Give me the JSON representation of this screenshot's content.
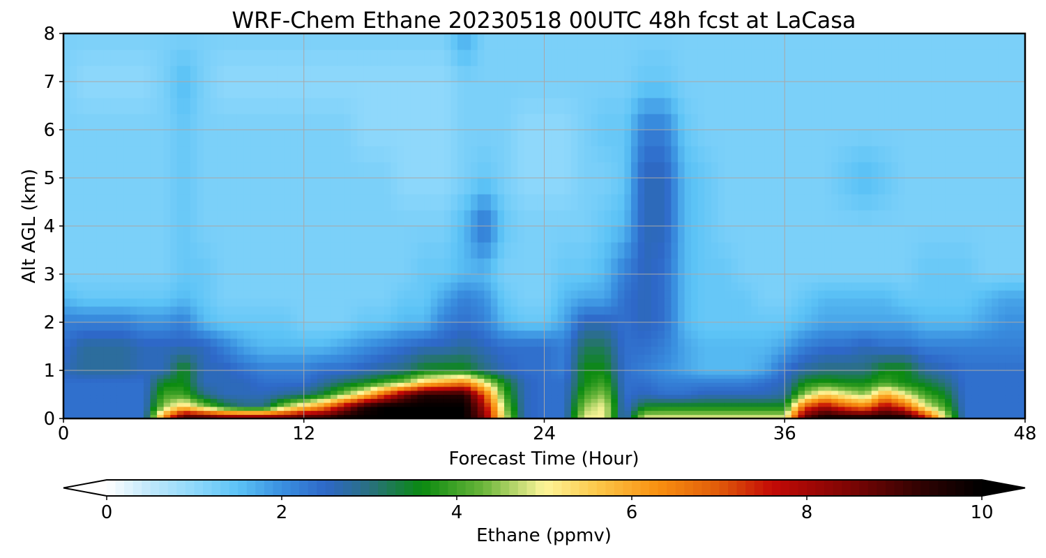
{
  "chart_data": {
    "type": "heatmap",
    "title": "WRF-Chem Ethane  20230518 00UTC 48h fcst at LaCasa",
    "xlabel": "Forecast Time (Hour)",
    "ylabel": "Alt AGL (km)",
    "xlim": [
      0,
      48
    ],
    "ylim": [
      0,
      8
    ],
    "x_ticks": [
      0,
      12,
      24,
      36,
      48
    ],
    "y_ticks": [
      0,
      1,
      2,
      3,
      4,
      5,
      6,
      7,
      8
    ],
    "grid": true,
    "colorbar": {
      "label": "Ethane  (ppmv)",
      "range": [
        0,
        10
      ],
      "ticks": [
        0,
        2,
        4,
        6,
        8,
        10
      ],
      "extend": "both",
      "orientation": "horizontal",
      "stops": [
        {
          "v": 0.0,
          "c": "#ffffff"
        },
        {
          "v": 0.5,
          "c": "#bfe7fb"
        },
        {
          "v": 1.0,
          "c": "#8fd8fb"
        },
        {
          "v": 1.5,
          "c": "#5cc3f6"
        },
        {
          "v": 2.0,
          "c": "#3a90e0"
        },
        {
          "v": 2.5,
          "c": "#2e68c8"
        },
        {
          "v": 3.0,
          "c": "#2a7080"
        },
        {
          "v": 3.6,
          "c": "#0a8a10"
        },
        {
          "v": 4.3,
          "c": "#6ab53a"
        },
        {
          "v": 5.0,
          "c": "#fdf59a"
        },
        {
          "v": 5.6,
          "c": "#fcc84a"
        },
        {
          "v": 6.3,
          "c": "#f99010"
        },
        {
          "v": 7.0,
          "c": "#e05a0a"
        },
        {
          "v": 7.6,
          "c": "#c40a06"
        },
        {
          "v": 8.5,
          "c": "#7c0504"
        },
        {
          "v": 9.3,
          "c": "#300202"
        },
        {
          "v": 10.0,
          "c": "#000000"
        }
      ]
    },
    "times": [
      0,
      1,
      2,
      3,
      4,
      5,
      6,
      7,
      8,
      9,
      10,
      11,
      12,
      13,
      14,
      15,
      16,
      17,
      18,
      19,
      20,
      21,
      22,
      23,
      24,
      25,
      26,
      27,
      28,
      29,
      30,
      31,
      32,
      33,
      34,
      35,
      36,
      37,
      38,
      39,
      40,
      41,
      42,
      43,
      44,
      45,
      46,
      47,
      48
    ],
    "altitudes_km": [
      0,
      0.25,
      0.5,
      0.75,
      1.0,
      1.5,
      2.0,
      2.5,
      3.0,
      4.0,
      5.0,
      6.0,
      7.0,
      8.0
    ],
    "values_ppmv": [
      [
        2.4,
        2.4,
        2.4,
        2.4,
        2.4,
        6.5,
        9.5,
        9.5,
        9.0,
        9.0,
        9.0,
        9.0,
        9.5,
        9.5,
        10.0,
        10.0,
        10.0,
        10.0,
        10.0,
        10.0,
        10.0,
        8.5,
        5.0,
        2.6,
        2.4,
        2.4,
        5.0,
        5.0,
        2.4,
        5.0,
        5.0,
        5.0,
        5.0,
        5.0,
        5.0,
        5.0,
        5.0,
        9.0,
        10.0,
        10.0,
        10.0,
        10.0,
        10.0,
        8.0,
        5.0,
        2.4,
        2.4,
        2.4,
        2.4
      ],
      [
        2.4,
        2.4,
        2.4,
        2.4,
        2.4,
        4.5,
        5.5,
        4.5,
        3.5,
        3.0,
        3.0,
        4.5,
        5.5,
        6.5,
        8.0,
        9.5,
        10.0,
        10.0,
        10.0,
        10.0,
        10.0,
        8.0,
        4.5,
        2.6,
        2.4,
        2.4,
        4.5,
        5.0,
        2.4,
        3.5,
        3.6,
        3.6,
        3.6,
        3.6,
        3.6,
        3.6,
        3.6,
        7.0,
        8.0,
        7.0,
        6.5,
        8.0,
        7.0,
        5.0,
        4.0,
        2.4,
        2.4,
        2.4,
        2.4
      ],
      [
        2.4,
        2.4,
        2.4,
        2.4,
        2.4,
        4.0,
        4.0,
        3.0,
        2.6,
        2.6,
        2.6,
        2.8,
        3.0,
        3.5,
        4.5,
        5.5,
        7.0,
        8.5,
        9.5,
        9.5,
        9.5,
        7.0,
        4.0,
        2.6,
        2.4,
        2.4,
        4.0,
        4.5,
        2.4,
        2.6,
        2.4,
        2.4,
        2.6,
        2.6,
        2.6,
        2.6,
        2.8,
        4.5,
        5.5,
        5.0,
        4.5,
        6.0,
        5.0,
        4.0,
        3.5,
        2.4,
        2.4,
        2.4,
        2.4
      ],
      [
        2.4,
        2.4,
        2.4,
        2.4,
        2.4,
        3.5,
        3.6,
        2.6,
        2.6,
        2.6,
        2.4,
        2.4,
        2.4,
        2.8,
        3.2,
        3.5,
        4.0,
        4.5,
        5.5,
        6.0,
        6.5,
        5.0,
        3.6,
        2.6,
        2.4,
        2.4,
        3.6,
        4.0,
        2.4,
        2.4,
        2.2,
        2.2,
        2.2,
        2.2,
        2.2,
        2.4,
        2.6,
        3.6,
        3.8,
        3.6,
        3.6,
        4.0,
        3.6,
        3.4,
        3.0,
        2.4,
        2.4,
        2.4,
        2.4
      ],
      [
        2.6,
        2.8,
        2.8,
        2.8,
        2.6,
        2.6,
        3.6,
        2.6,
        2.6,
        2.4,
        2.2,
        2.2,
        2.2,
        2.4,
        2.4,
        2.6,
        2.8,
        3.0,
        3.5,
        3.6,
        3.6,
        3.0,
        2.6,
        2.4,
        2.4,
        2.2,
        3.6,
        3.6,
        2.4,
        2.2,
        2.0,
        1.8,
        1.6,
        1.6,
        1.6,
        1.8,
        2.4,
        2.8,
        3.0,
        3.0,
        3.0,
        3.6,
        3.6,
        2.8,
        2.6,
        2.4,
        2.4,
        2.4,
        2.4
      ],
      [
        2.4,
        2.8,
        2.8,
        2.8,
        2.6,
        2.6,
        2.6,
        2.6,
        2.2,
        1.8,
        1.6,
        1.6,
        1.6,
        1.6,
        1.8,
        2.0,
        2.2,
        2.4,
        2.6,
        2.6,
        2.8,
        2.6,
        2.4,
        2.4,
        2.4,
        2.2,
        3.2,
        3.2,
        2.4,
        2.4,
        2.2,
        1.8,
        1.6,
        1.6,
        1.6,
        1.6,
        1.8,
        2.2,
        2.4,
        2.4,
        2.6,
        2.4,
        2.4,
        2.2,
        2.2,
        2.2,
        2.2,
        2.2,
        2.2
      ],
      [
        2.2,
        2.2,
        2.2,
        2.2,
        2.0,
        2.0,
        2.2,
        1.6,
        1.4,
        1.4,
        1.4,
        1.4,
        1.2,
        1.2,
        1.2,
        1.4,
        1.4,
        1.6,
        1.6,
        2.2,
        2.4,
        2.2,
        1.6,
        1.4,
        1.4,
        1.8,
        2.6,
        2.6,
        2.4,
        2.6,
        2.4,
        1.6,
        1.4,
        1.4,
        1.4,
        1.4,
        1.4,
        1.6,
        1.8,
        1.8,
        1.8,
        1.8,
        1.8,
        1.6,
        1.6,
        1.6,
        1.8,
        2.0,
        2.0
      ],
      [
        1.6,
        1.4,
        1.4,
        1.4,
        1.4,
        1.4,
        1.6,
        1.4,
        1.2,
        1.2,
        1.2,
        1.2,
        1.2,
        1.2,
        1.2,
        1.2,
        1.2,
        1.4,
        1.4,
        1.8,
        2.2,
        2.0,
        1.4,
        1.2,
        1.2,
        1.6,
        1.8,
        1.8,
        2.4,
        2.6,
        2.4,
        1.6,
        1.4,
        1.4,
        1.4,
        1.2,
        1.2,
        1.4,
        1.6,
        1.6,
        1.6,
        1.6,
        1.4,
        1.4,
        1.4,
        1.4,
        1.6,
        1.8,
        1.8
      ],
      [
        1.2,
        1.2,
        1.2,
        1.2,
        1.2,
        1.2,
        1.4,
        1.4,
        1.2,
        1.2,
        1.2,
        1.2,
        1.2,
        1.2,
        1.2,
        1.2,
        1.2,
        1.2,
        1.4,
        1.4,
        1.6,
        1.6,
        1.2,
        1.2,
        1.2,
        1.4,
        1.4,
        1.6,
        2.2,
        2.6,
        2.4,
        1.6,
        1.4,
        1.4,
        1.2,
        1.2,
        1.2,
        1.2,
        1.2,
        1.2,
        1.2,
        1.2,
        1.2,
        1.4,
        1.4,
        1.4,
        1.2,
        1.2,
        1.2
      ],
      [
        1.2,
        1.2,
        1.2,
        1.2,
        1.2,
        1.2,
        1.4,
        1.2,
        1.2,
        1.2,
        1.2,
        1.2,
        1.2,
        1.2,
        1.2,
        1.2,
        1.2,
        1.2,
        1.2,
        1.2,
        1.6,
        2.4,
        1.4,
        1.2,
        1.2,
        1.2,
        1.2,
        1.4,
        1.6,
        2.6,
        2.6,
        1.6,
        1.4,
        1.2,
        1.2,
        1.2,
        1.2,
        1.2,
        1.2,
        1.2,
        1.2,
        1.2,
        1.2,
        1.2,
        1.2,
        1.2,
        1.2,
        1.2,
        1.2
      ],
      [
        1.2,
        1.2,
        1.2,
        1.2,
        1.2,
        1.2,
        1.4,
        1.2,
        1.2,
        1.2,
        1.2,
        1.2,
        1.2,
        1.2,
        1.2,
        1.2,
        1.2,
        1.0,
        1.0,
        1.0,
        1.2,
        1.4,
        1.2,
        1.0,
        1.0,
        1.0,
        1.2,
        1.2,
        1.4,
        2.6,
        2.6,
        1.6,
        1.4,
        1.2,
        1.2,
        1.2,
        1.2,
        1.2,
        1.2,
        1.4,
        1.6,
        1.4,
        1.2,
        1.2,
        1.2,
        1.2,
        1.2,
        1.2,
        1.2
      ],
      [
        1.2,
        1.2,
        1.2,
        1.2,
        1.2,
        1.2,
        1.4,
        1.2,
        1.2,
        1.2,
        1.2,
        1.2,
        1.2,
        1.2,
        1.2,
        1.0,
        1.0,
        1.0,
        1.0,
        1.0,
        1.2,
        1.2,
        1.2,
        1.0,
        1.0,
        1.0,
        1.2,
        1.4,
        1.4,
        2.2,
        2.2,
        1.4,
        1.2,
        1.2,
        1.2,
        1.2,
        1.2,
        1.2,
        1.2,
        1.2,
        1.2,
        1.2,
        1.2,
        1.2,
        1.2,
        1.2,
        1.2,
        1.2,
        1.2
      ],
      [
        1.2,
        1.0,
        1.0,
        1.0,
        1.0,
        1.2,
        1.6,
        1.2,
        1.0,
        1.0,
        1.0,
        1.0,
        1.0,
        1.0,
        1.0,
        1.0,
        1.0,
        1.0,
        1.0,
        1.0,
        1.2,
        1.2,
        1.2,
        1.2,
        1.2,
        1.2,
        1.2,
        1.2,
        1.2,
        1.4,
        1.4,
        1.2,
        1.2,
        1.2,
        1.2,
        1.2,
        1.2,
        1.2,
        1.2,
        1.2,
        1.2,
        1.2,
        1.2,
        1.2,
        1.2,
        1.2,
        1.2,
        1.2,
        1.2
      ],
      [
        1.2,
        1.2,
        1.2,
        1.2,
        1.2,
        1.2,
        1.2,
        1.2,
        1.2,
        1.2,
        1.2,
        1.2,
        1.2,
        1.2,
        1.2,
        1.2,
        1.2,
        1.2,
        1.2,
        1.2,
        1.8,
        1.2,
        1.2,
        1.2,
        1.2,
        1.2,
        1.2,
        1.2,
        1.2,
        1.2,
        1.2,
        1.2,
        1.2,
        1.2,
        1.2,
        1.2,
        1.2,
        1.2,
        1.2,
        1.2,
        1.2,
        1.2,
        1.2,
        1.2,
        1.2,
        1.2,
        1.2,
        1.2,
        1.2
      ]
    ]
  }
}
